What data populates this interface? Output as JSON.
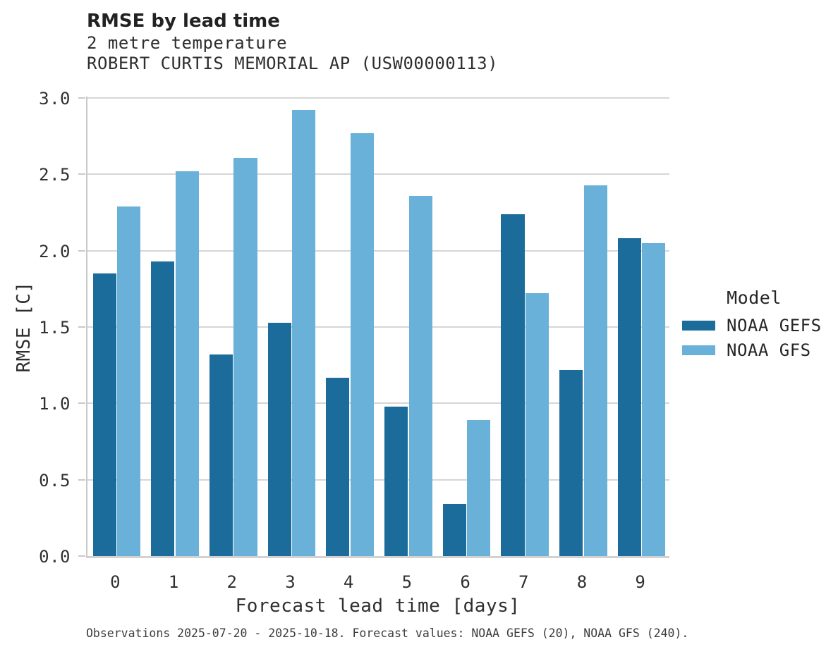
{
  "header": {
    "title": "RMSE by lead time",
    "subtitle1": "2 metre temperature",
    "subtitle2": "ROBERT CURTIS MEMORIAL AP (USW00000113)"
  },
  "chart_data": {
    "type": "bar",
    "title": "RMSE by lead time",
    "subtitle": [
      "2 metre temperature",
      "ROBERT CURTIS MEMORIAL AP (USW00000113)"
    ],
    "categories": [
      "0",
      "1",
      "2",
      "3",
      "4",
      "5",
      "6",
      "7",
      "8",
      "9"
    ],
    "series": [
      {
        "name": "NOAA GEFS",
        "color": "#1b6c9b",
        "values": [
          1.85,
          1.93,
          1.32,
          1.53,
          1.17,
          0.98,
          0.34,
          2.24,
          1.22,
          2.08
        ]
      },
      {
        "name": "NOAA GFS",
        "color": "#6ab1da",
        "values": [
          2.29,
          2.52,
          2.61,
          2.92,
          2.77,
          2.36,
          0.89,
          1.72,
          2.43,
          2.05
        ]
      }
    ],
    "xlabel": "Forecast lead time [days]",
    "ylabel": "RMSE [C]",
    "ylim": [
      0.0,
      3.0
    ],
    "yticks": [
      0.0,
      0.5,
      1.0,
      1.5,
      2.0,
      2.5,
      3.0
    ],
    "grid": true,
    "legend_position": "right"
  },
  "legend": {
    "title": "Model",
    "entries": [
      {
        "label": "NOAA GEFS",
        "color": "#1b6c9b"
      },
      {
        "label": "NOAA GFS",
        "color": "#6ab1da"
      }
    ]
  },
  "footer": {
    "caption": "Observations 2025-07-20 - 2025-10-18. Forecast values: NOAA GEFS (20), NOAA GFS (240)."
  },
  "colors": {
    "gefs": "#1b6c9b",
    "gfs": "#6ab1da",
    "grid": "#d6d6d6",
    "spine": "#c9c9c9",
    "text": "#2e2e2e"
  }
}
